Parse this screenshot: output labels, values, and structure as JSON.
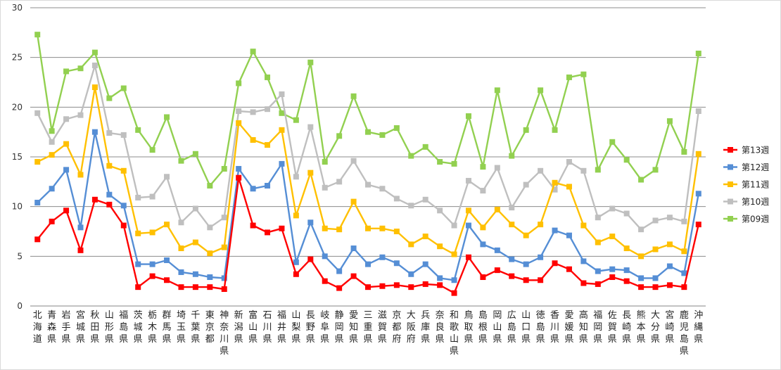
{
  "chart_data": {
    "type": "line",
    "ylim": [
      0,
      30
    ],
    "yticks": [
      0,
      5,
      10,
      15,
      20,
      25,
      30
    ],
    "grid": true,
    "legend_position": "right",
    "categories": [
      "北海道",
      "青森県",
      "岩手県",
      "宮城県",
      "秋田県",
      "山形県",
      "福島県",
      "茨城県",
      "栃木県",
      "群馬県",
      "埼玉県",
      "千葉県",
      "東京都",
      "神奈川県",
      "新潟県",
      "富山県",
      "石川県",
      "福井県",
      "山梨県",
      "長野県",
      "岐阜県",
      "静岡県",
      "愛知県",
      "三重県",
      "滋賀県",
      "京都府",
      "大阪府",
      "兵庫県",
      "奈良県",
      "和歌山県",
      "鳥取県",
      "島根県",
      "岡山県",
      "広島県",
      "山口県",
      "徳島県",
      "香川県",
      "愛媛県",
      "高知県",
      "福岡県",
      "佐賀県",
      "長崎県",
      "熊本県",
      "大分県",
      "宮崎県",
      "鹿児島県",
      "沖縄県"
    ],
    "series": [
      {
        "name": "第09週",
        "color": "#92d050",
        "values": [
          27.3,
          17.6,
          23.6,
          23.9,
          25.5,
          20.9,
          21.9,
          17.7,
          15.7,
          19.0,
          14.6,
          15.3,
          12.1,
          13.8,
          22.4,
          25.6,
          23.0,
          19.4,
          18.7,
          24.5,
          14.5,
          17.1,
          21.1,
          17.5,
          17.2,
          17.9,
          15.1,
          16.0,
          14.5,
          14.3,
          19.1,
          14.0,
          21.7,
          15.1,
          17.7,
          21.7,
          17.7,
          23.0,
          23.3,
          13.7,
          16.5,
          14.7,
          12.7,
          13.7,
          18.6,
          15.5,
          25.4
        ]
      },
      {
        "name": "第10週",
        "color": "#bfbfbf",
        "values": [
          19.4,
          16.5,
          18.8,
          19.2,
          24.2,
          17.4,
          17.2,
          10.9,
          11.0,
          13.0,
          8.4,
          9.8,
          7.9,
          8.9,
          19.6,
          19.5,
          19.8,
          21.3,
          13.0,
          18.0,
          11.9,
          12.5,
          14.6,
          12.2,
          11.8,
          10.8,
          10.1,
          10.7,
          9.6,
          8.1,
          12.6,
          11.6,
          13.9,
          9.9,
          12.2,
          13.6,
          11.7,
          14.5,
          13.6,
          8.9,
          9.8,
          9.3,
          7.7,
          8.6,
          8.9,
          8.5,
          19.6
        ]
      },
      {
        "name": "第11週",
        "color": "#ffc000",
        "values": [
          14.5,
          15.2,
          16.3,
          13.2,
          22.0,
          14.1,
          13.6,
          7.3,
          7.4,
          8.2,
          5.8,
          6.4,
          5.3,
          5.9,
          18.4,
          16.7,
          16.2,
          17.7,
          9.1,
          13.4,
          7.8,
          7.7,
          10.5,
          7.8,
          7.8,
          7.5,
          6.2,
          7.0,
          6.0,
          5.2,
          9.6,
          7.9,
          9.7,
          8.2,
          7.1,
          8.2,
          12.4,
          12.0,
          8.1,
          6.4,
          7.0,
          5.8,
          5.0,
          5.7,
          6.2,
          5.5,
          15.3
        ]
      },
      {
        "name": "第12週",
        "color": "#558ed5",
        "values": [
          10.4,
          11.8,
          13.7,
          7.9,
          17.5,
          11.2,
          10.1,
          4.2,
          4.2,
          4.6,
          3.4,
          3.2,
          2.9,
          2.8,
          13.8,
          11.8,
          12.1,
          14.3,
          4.4,
          8.4,
          5.0,
          3.5,
          5.8,
          4.2,
          4.9,
          4.3,
          3.2,
          4.2,
          2.8,
          2.6,
          8.1,
          6.2,
          5.6,
          4.7,
          4.2,
          4.9,
          7.6,
          7.1,
          4.5,
          3.5,
          3.7,
          3.6,
          2.8,
          2.8,
          4.0,
          3.3,
          11.3
        ]
      },
      {
        "name": "第13週",
        "color": "#ff0000",
        "values": [
          6.7,
          8.5,
          9.6,
          5.6,
          10.7,
          10.2,
          8.1,
          1.9,
          3.0,
          2.6,
          1.9,
          1.9,
          1.9,
          1.7,
          12.9,
          8.1,
          7.4,
          7.8,
          3.2,
          4.7,
          2.5,
          1.8,
          3.0,
          1.9,
          2.0,
          2.1,
          1.9,
          2.2,
          2.1,
          1.3,
          4.9,
          2.9,
          3.6,
          3.0,
          2.6,
          2.6,
          4.3,
          3.7,
          2.3,
          2.2,
          2.9,
          2.5,
          1.9,
          1.9,
          2.1,
          1.9,
          8.2
        ]
      }
    ],
    "legend_order": [
      "第13週",
      "第12週",
      "第11週",
      "第10週",
      "第09週"
    ]
  }
}
